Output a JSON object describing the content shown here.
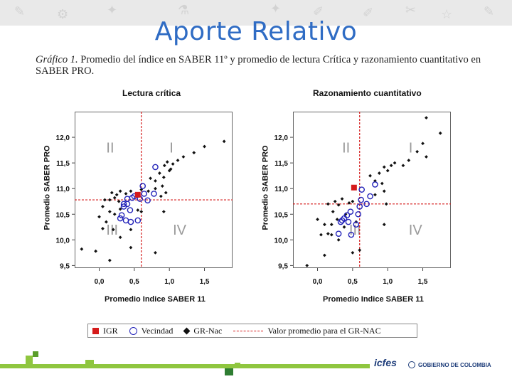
{
  "slide": {
    "title": "Aporte Relativo",
    "background_doodles": [
      "✎",
      "⚙",
      "✦",
      "✐",
      "✂",
      "☆",
      "✎",
      "⚗",
      "✐",
      "✦"
    ]
  },
  "caption": {
    "label": "Gráfico 1.",
    "text": "Promedio del índice en SABER 11º y promedio de lectura Crítica y razonamiento cuantitativo en SABER PRO."
  },
  "legend": {
    "igr": "IGR",
    "vecindad": "Vecindad",
    "grnac": "GR-Nac",
    "promedio": "Valor promedio para el GR-NAC"
  },
  "brand": {
    "icfes": "icfes",
    "gobierno": "GOBIERNO DE COLOMBIA"
  },
  "colors": {
    "accent": "#2f6cc4",
    "igr": "#d51b1b",
    "vecindad": "#2323b9",
    "grnac": "#111111",
    "footer": "#8fc63f"
  },
  "chart_data": [
    {
      "type": "scatter",
      "title": "Lectura crítica",
      "xlabel": "Promedio Indice SABER 11",
      "ylabel": "Promedio SABER PRO",
      "xlim": [
        -0.35,
        1.9
      ],
      "ylim": [
        9.45,
        12.5
      ],
      "xticks": [
        "0,0",
        "0,5",
        "1,0",
        "1,5"
      ],
      "xtick_values": [
        0,
        0.5,
        1,
        1.5
      ],
      "yticks": [
        "9,5",
        "10,0",
        "10,5",
        "11,0",
        "11,5",
        "12,0"
      ],
      "ytick_values": [
        9.5,
        10,
        10.5,
        11,
        11.5,
        12
      ],
      "ref_x": 0.6,
      "ref_y": 10.78,
      "quadrants": [
        {
          "label": "I",
          "x": 1.0,
          "y": 11.7
        },
        {
          "label": "II",
          "x": 0.1,
          "y": 11.7
        },
        {
          "label": "III",
          "x": 0.1,
          "y": 10.1
        },
        {
          "label": "IV",
          "x": 1.05,
          "y": 10.1
        }
      ],
      "igr": {
        "x": 0.55,
        "y": 10.88
      },
      "vecindad": [
        [
          0.8,
          11.42
        ],
        [
          0.62,
          11.05
        ],
        [
          0.64,
          10.9
        ],
        [
          0.78,
          10.9
        ],
        [
          0.69,
          10.77
        ],
        [
          0.58,
          10.8
        ],
        [
          0.5,
          10.85
        ],
        [
          0.47,
          10.82
        ],
        [
          0.4,
          10.8
        ],
        [
          0.4,
          10.7
        ],
        [
          0.44,
          10.58
        ],
        [
          0.35,
          10.65
        ],
        [
          0.32,
          10.48
        ],
        [
          0.3,
          10.42
        ],
        [
          0.38,
          10.38
        ],
        [
          0.45,
          10.35
        ],
        [
          0.55,
          10.38
        ],
        [
          0.35,
          10.7
        ]
      ],
      "grnac": [
        [
          1.78,
          11.92
        ],
        [
          1.5,
          11.82
        ],
        [
          1.35,
          11.7
        ],
        [
          1.2,
          11.62
        ],
        [
          1.12,
          11.55
        ],
        [
          1.05,
          11.48
        ],
        [
          0.97,
          11.52
        ],
        [
          0.93,
          11.45
        ],
        [
          1.0,
          11.35
        ],
        [
          0.86,
          11.3
        ],
        [
          0.92,
          11.22
        ],
        [
          0.73,
          11.2
        ],
        [
          0.8,
          11.15
        ],
        [
          1.02,
          11.38
        ],
        [
          0.9,
          11.05
        ],
        [
          0.8,
          11.0
        ],
        [
          0.95,
          10.92
        ],
        [
          0.88,
          10.85
        ],
        [
          0.7,
          10.95
        ],
        [
          0.6,
          10.98
        ],
        [
          0.45,
          10.95
        ],
        [
          0.38,
          10.9
        ],
        [
          0.3,
          10.95
        ],
        [
          0.25,
          10.88
        ],
        [
          0.18,
          10.92
        ],
        [
          0.22,
          10.82
        ],
        [
          0.15,
          10.78
        ],
        [
          0.28,
          10.75
        ],
        [
          0.08,
          10.78
        ],
        [
          0.05,
          10.65
        ],
        [
          0.15,
          10.55
        ],
        [
          0.3,
          10.6
        ],
        [
          0.22,
          10.5
        ],
        [
          0.55,
          10.58
        ],
        [
          0.6,
          10.55
        ],
        [
          0.92,
          10.55
        ],
        [
          0.0,
          10.45
        ],
        [
          0.1,
          10.35
        ],
        [
          0.05,
          10.22
        ],
        [
          0.2,
          10.2
        ],
        [
          0.3,
          10.05
        ],
        [
          0.45,
          9.85
        ],
        [
          0.8,
          9.75
        ],
        [
          0.15,
          9.6
        ],
        [
          -0.05,
          9.78
        ],
        [
          -0.25,
          9.82
        ],
        [
          0.45,
          10.2
        ]
      ]
    },
    {
      "type": "scatter",
      "title": "Razonamiento cuantitativo",
      "xlabel": "Promedio Indice SABER 11",
      "ylabel": "Promedio SABER PRO",
      "xlim": [
        -0.35,
        1.9
      ],
      "ylim": [
        9.45,
        12.5
      ],
      "xticks": [
        "0,0",
        "0,5",
        "1,0",
        "1,5"
      ],
      "xtick_values": [
        0,
        0.5,
        1,
        1.5
      ],
      "yticks": [
        "9,5",
        "10,0",
        "10,5",
        "11,0",
        "11,5",
        "12,0"
      ],
      "ytick_values": [
        9.5,
        10,
        10.5,
        11,
        11.5,
        12
      ],
      "ref_x": 0.6,
      "ref_y": 10.7,
      "quadrants": [
        {
          "label": "I",
          "x": 1.3,
          "y": 11.7
        },
        {
          "label": "II",
          "x": 0.35,
          "y": 11.7
        },
        {
          "label": "III",
          "x": 0.45,
          "y": 10.1
        },
        {
          "label": "IV",
          "x": 1.3,
          "y": 10.1
        }
      ],
      "igr": {
        "x": 0.52,
        "y": 11.02
      },
      "vecindad": [
        [
          0.82,
          11.08
        ],
        [
          0.75,
          10.85
        ],
        [
          0.63,
          10.98
        ],
        [
          0.7,
          10.7
        ],
        [
          0.62,
          10.78
        ],
        [
          0.6,
          10.65
        ],
        [
          0.58,
          10.5
        ],
        [
          0.55,
          10.3
        ],
        [
          0.47,
          10.55
        ],
        [
          0.42,
          10.48
        ],
        [
          0.38,
          10.42
        ],
        [
          0.33,
          10.35
        ],
        [
          0.35,
          10.38
        ],
        [
          0.44,
          10.35
        ],
        [
          0.3,
          10.12
        ],
        [
          0.48,
          10.1
        ]
      ],
      "grnac": [
        [
          1.75,
          12.08
        ],
        [
          1.55,
          12.38
        ],
        [
          1.5,
          11.88
        ],
        [
          1.42,
          11.72
        ],
        [
          1.55,
          11.62
        ],
        [
          1.3,
          11.55
        ],
        [
          1.22,
          11.45
        ],
        [
          1.05,
          11.45
        ],
        [
          1.1,
          11.5
        ],
        [
          0.95,
          11.42
        ],
        [
          1.0,
          11.35
        ],
        [
          0.88,
          11.3
        ],
        [
          0.82,
          11.15
        ],
        [
          0.92,
          11.1
        ],
        [
          0.95,
          10.95
        ],
        [
          0.75,
          11.25
        ],
        [
          0.82,
          10.88
        ],
        [
          0.98,
          10.7
        ],
        [
          0.5,
          10.75
        ],
        [
          0.45,
          10.72
        ],
        [
          0.35,
          10.8
        ],
        [
          0.25,
          10.75
        ],
        [
          0.3,
          10.68
        ],
        [
          0.15,
          10.7
        ],
        [
          0.22,
          10.55
        ],
        [
          0.28,
          10.4
        ],
        [
          0.4,
          10.5
        ],
        [
          0.38,
          10.25
        ],
        [
          0.2,
          10.3
        ],
        [
          0.1,
          10.3
        ],
        [
          0.05,
          10.1
        ],
        [
          0.2,
          10.1
        ],
        [
          0.15,
          10.12
        ],
        [
          0.3,
          10.0
        ],
        [
          0.55,
          10.35
        ],
        [
          0.95,
          10.3
        ],
        [
          0.0,
          10.4
        ],
        [
          0.5,
          9.75
        ],
        [
          0.6,
          9.8
        ],
        [
          -0.15,
          9.5
        ],
        [
          0.1,
          9.7
        ]
      ]
    }
  ]
}
